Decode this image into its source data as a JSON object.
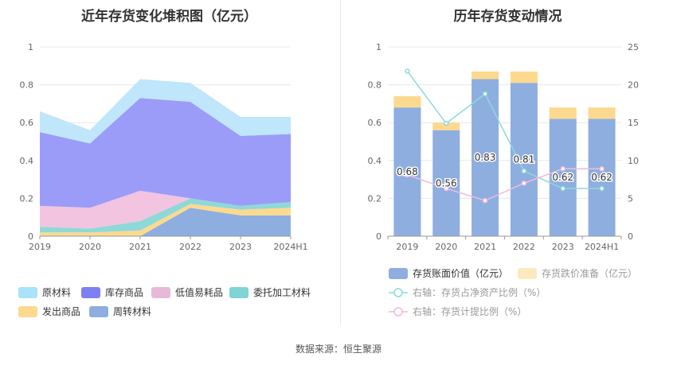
{
  "source": "数据来源：恒生聚源",
  "chart_data": [
    {
      "type": "area",
      "title": "近年存货变化堆积图（亿元）",
      "x": [
        "2019",
        "2020",
        "2021",
        "2022",
        "2023",
        "2024H1"
      ],
      "ylim": [
        0,
        1
      ],
      "yticks": [
        "0",
        "0.2",
        "0.4",
        "0.6",
        "0.8",
        "1"
      ],
      "grid": true,
      "legend_position": "bottom",
      "series": [
        {
          "name": "周转材料",
          "color": "#8eaee0",
          "values": [
            0.0,
            0.0,
            0.0,
            0.15,
            0.11,
            0.11
          ]
        },
        {
          "name": "发出商品",
          "color": "#fcd98f",
          "values": [
            0.02,
            0.02,
            0.03,
            0.02,
            0.03,
            0.04
          ]
        },
        {
          "name": "委托加工材料",
          "color": "#8ed9d8",
          "values": [
            0.03,
            0.02,
            0.05,
            0.03,
            0.02,
            0.03
          ]
        },
        {
          "name": "低值易耗品",
          "color": "#f2c4df",
          "values": [
            0.11,
            0.11,
            0.16,
            0.0,
            0.0,
            0.0
          ]
        },
        {
          "name": "库存商品",
          "color": "#9b9cf8",
          "values": [
            0.39,
            0.34,
            0.49,
            0.51,
            0.37,
            0.36
          ]
        },
        {
          "name": "原材料",
          "color": "#bfe6fb",
          "values": [
            0.11,
            0.07,
            0.1,
            0.1,
            0.1,
            0.09
          ]
        }
      ],
      "legend": [
        {
          "name": "原材料",
          "color": "#a9e2fb"
        },
        {
          "name": "库存商品",
          "color": "#7d7ff2"
        },
        {
          "name": "低值易耗品",
          "color": "#e7b9d9"
        },
        {
          "name": "委托加工材料",
          "color": "#7fd4d4"
        },
        {
          "name": "发出商品",
          "color": "#fcd98f"
        },
        {
          "name": "周转材料",
          "color": "#8eaee0"
        }
      ]
    },
    {
      "type": "bar",
      "title": "历年存货变动情况",
      "categories": [
        "2019",
        "2020",
        "2021",
        "2022",
        "2023",
        "2024H1"
      ],
      "ylim": [
        0,
        1
      ],
      "yticks": [
        "0",
        "0.2",
        "0.4",
        "0.6",
        "0.8",
        "1"
      ],
      "y2lim": [
        0,
        25
      ],
      "y2ticks": [
        "0",
        "5",
        "10",
        "15",
        "20",
        "25"
      ],
      "grid": true,
      "legend_position": "bottom",
      "series": [
        {
          "name": "存货账面价值（亿元）",
          "color": "#8eaee0",
          "stack": true,
          "values": [
            0.68,
            0.56,
            0.83,
            0.81,
            0.62,
            0.62
          ],
          "labels": [
            "0.68",
            "0.56",
            "0.83",
            "0.81",
            "0.62",
            "0.62"
          ]
        },
        {
          "name": "存货跌价准备（亿元）",
          "color": "#fcd98f",
          "stack": true,
          "values": [
            0.06,
            0.04,
            0.04,
            0.06,
            0.06,
            0.06
          ]
        },
        {
          "name": "右轴：存货占净资产比例（%）",
          "color": "#8ed9d8",
          "type": "line",
          "axis": "right",
          "values": [
            21.8,
            14.9,
            18.8,
            8.6,
            6.3,
            6.3
          ]
        },
        {
          "name": "右轴：存货计提比例（%）",
          "color": "#eebcdc",
          "type": "line",
          "axis": "right",
          "values": [
            8.1,
            6.3,
            4.7,
            7.0,
            8.9,
            8.9
          ]
        }
      ]
    }
  ]
}
